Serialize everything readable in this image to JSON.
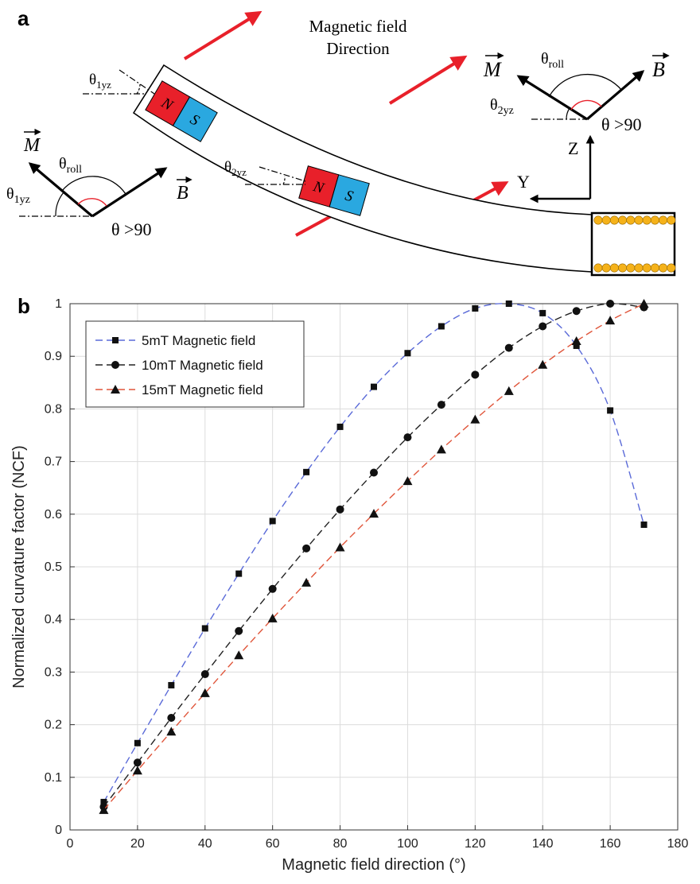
{
  "panel_a": {
    "label": "a",
    "field_title_line1": "Magnetic field",
    "field_title_line2": "Direction",
    "left_diagram": {
      "m_label": "M",
      "b_label": "B",
      "roll_label": "θ",
      "roll_sub": "roll",
      "angle_label": "θ",
      "angle_sub": "1yz",
      "theta_text": "θ >90"
    },
    "right_diagram": {
      "m_label": "M",
      "b_label": "B",
      "roll_label": "θ",
      "roll_sub": "roll",
      "angle_label": "θ",
      "angle_sub": "2yz",
      "theta_text": "θ >90",
      "z_label": "Z",
      "y_label": "Y"
    },
    "magnet1": {
      "n": "N",
      "s": "S",
      "angle_label": "θ",
      "angle_sub": "1yz"
    },
    "magnet2": {
      "n": "N",
      "s": "S",
      "angle_label": "θ",
      "angle_sub": "2yz"
    },
    "colors": {
      "north": "#e8202a",
      "south": "#2aa8e0",
      "arrow_red": "#e8202a",
      "coil": "#f5b21a",
      "angle_arc": "#e8202a"
    }
  },
  "panel_b": {
    "label": "b"
  },
  "chart_data": {
    "type": "line",
    "title": "",
    "xlabel": "Magnetic field direction (°)",
    "ylabel": "Normalized curvature factor (NCF)",
    "xlim": [
      0,
      180
    ],
    "ylim": [
      0,
      1
    ],
    "xticks": [
      "0",
      "20",
      "40",
      "60",
      "80",
      "100",
      "120",
      "140",
      "160",
      "180"
    ],
    "yticks": [
      "0",
      "0.1",
      "0.2",
      "0.3",
      "0.4",
      "0.5",
      "0.6",
      "0.7",
      "0.8",
      "0.9",
      "1"
    ],
    "grid": true,
    "legend_position": "top-left",
    "x": [
      10,
      20,
      30,
      40,
      50,
      60,
      70,
      80,
      90,
      100,
      110,
      120,
      130,
      140,
      150,
      160,
      170
    ],
    "series": [
      {
        "name": "5mT Magnetic field",
        "marker": "square",
        "line_color": "#5a6ad8",
        "values": [
          0.053,
          0.165,
          0.275,
          0.383,
          0.487,
          0.587,
          0.68,
          0.766,
          0.842,
          0.906,
          0.957,
          0.991,
          1.0,
          0.982,
          0.92,
          0.797,
          0.58
        ]
      },
      {
        "name": "10mT Magnetic field",
        "marker": "circle",
        "line_color": "#222222",
        "values": [
          0.044,
          0.128,
          0.213,
          0.296,
          0.378,
          0.458,
          0.535,
          0.609,
          0.679,
          0.746,
          0.808,
          0.865,
          0.916,
          0.957,
          0.986,
          1.0,
          0.993
        ]
      },
      {
        "name": "15mT Magnetic field",
        "marker": "triangle",
        "line_color": "#e0553a",
        "values": [
          0.038,
          0.113,
          0.187,
          0.26,
          0.332,
          0.402,
          0.47,
          0.537,
          0.601,
          0.663,
          0.723,
          0.78,
          0.834,
          0.884,
          0.929,
          0.968,
          1.0
        ]
      }
    ]
  }
}
